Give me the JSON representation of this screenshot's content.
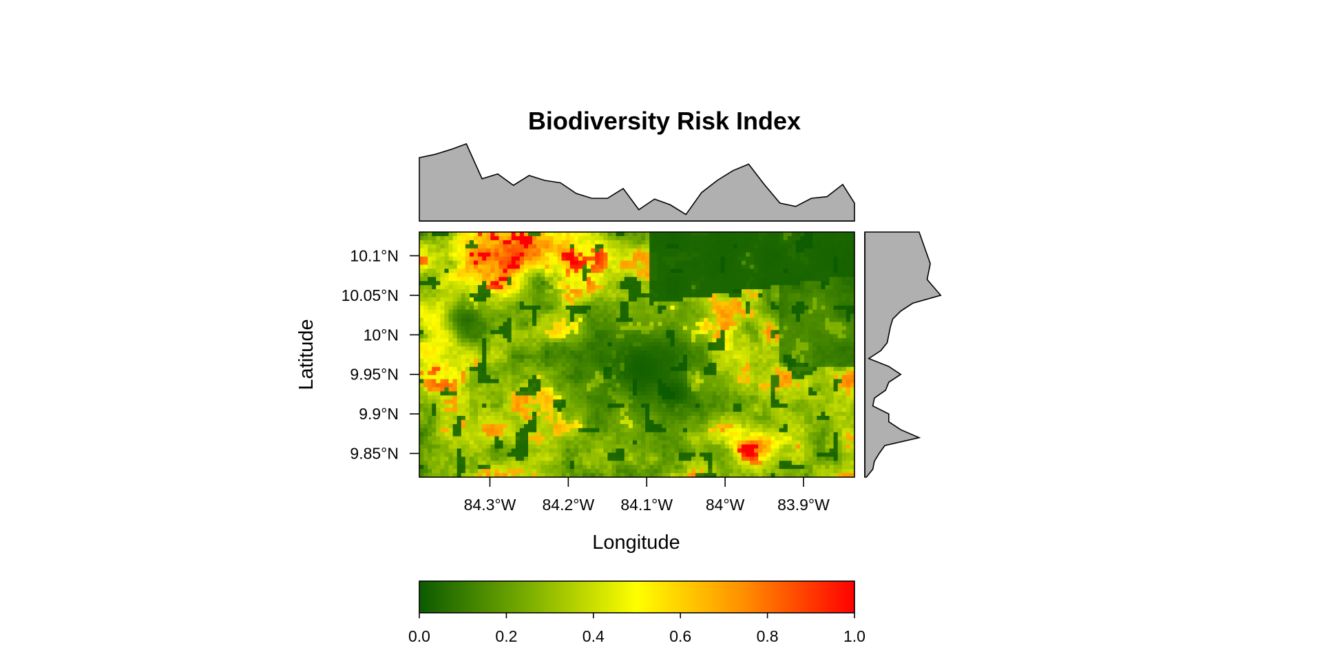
{
  "chart_data": {
    "type": "heatmap",
    "title": "Biodiversity Risk Index",
    "xlabel": "Longitude",
    "ylabel": "Latitude",
    "xlim": [
      -84.39,
      -83.835
    ],
    "ylim": [
      9.82,
      10.13
    ],
    "x_ticks": [
      {
        "value": -84.3,
        "label": "84.3°W"
      },
      {
        "value": -84.2,
        "label": "84.2°W"
      },
      {
        "value": -84.1,
        "label": "84.1°W"
      },
      {
        "value": -84.0,
        "label": "84°W"
      },
      {
        "value": -83.9,
        "label": "83.9°W"
      }
    ],
    "y_ticks": [
      {
        "value": 10.1,
        "label": "10.1°N"
      },
      {
        "value": 10.05,
        "label": "10.05°N"
      },
      {
        "value": 10.0,
        "label": "10°N"
      },
      {
        "value": 9.95,
        "label": "9.95°N"
      },
      {
        "value": 9.9,
        "label": "9.9°N"
      },
      {
        "value": 9.85,
        "label": "9.85°N"
      }
    ],
    "colorbar": {
      "range": [
        0,
        1
      ],
      "ticks": [
        {
          "value": 0.0,
          "label": "0.0"
        },
        {
          "value": 0.2,
          "label": "0.2"
        },
        {
          "value": 0.4,
          "label": "0.4"
        },
        {
          "value": 0.6,
          "label": "0.6"
        },
        {
          "value": 0.8,
          "label": "0.8"
        },
        {
          "value": 1.0,
          "label": "1.0"
        }
      ],
      "stops": [
        {
          "value": 0.0,
          "color": "#0b5a00"
        },
        {
          "value": 0.25,
          "color": "#7aae00"
        },
        {
          "value": 0.5,
          "color": "#ffff00"
        },
        {
          "value": 0.75,
          "color": "#ff8c00"
        },
        {
          "value": 1.0,
          "color": "#ff0000"
        }
      ]
    },
    "top_marginal": {
      "x": [
        -84.39,
        -84.37,
        -84.35,
        -84.33,
        -84.31,
        -84.29,
        -84.27,
        -84.25,
        -84.23,
        -84.21,
        -84.19,
        -84.17,
        -84.15,
        -84.13,
        -84.11,
        -84.09,
        -84.07,
        -84.05,
        -84.03,
        -84.01,
        -83.99,
        -83.97,
        -83.95,
        -83.93,
        -83.91,
        -83.89,
        -83.87,
        -83.85,
        -83.835
      ],
      "values": [
        0.78,
        0.82,
        0.88,
        0.95,
        0.52,
        0.58,
        0.44,
        0.56,
        0.5,
        0.47,
        0.34,
        0.28,
        0.28,
        0.4,
        0.14,
        0.27,
        0.2,
        0.08,
        0.35,
        0.5,
        0.62,
        0.7,
        0.45,
        0.22,
        0.18,
        0.28,
        0.3,
        0.45,
        0.22
      ]
    },
    "right_marginal": {
      "y": [
        10.13,
        10.11,
        10.09,
        10.07,
        10.05,
        10.04,
        10.03,
        10.02,
        10.01,
        10.0,
        9.99,
        9.98,
        9.97,
        9.96,
        9.95,
        9.94,
        9.93,
        9.92,
        9.91,
        9.9,
        9.89,
        9.88,
        9.87,
        9.86,
        9.85,
        9.84,
        9.83,
        9.82
      ],
      "values": [
        0.68,
        0.75,
        0.82,
        0.78,
        0.95,
        0.6,
        0.45,
        0.35,
        0.32,
        0.3,
        0.28,
        0.2,
        0.05,
        0.3,
        0.45,
        0.3,
        0.26,
        0.12,
        0.1,
        0.3,
        0.3,
        0.45,
        0.68,
        0.25,
        0.18,
        0.12,
        0.1,
        0.02
      ]
    }
  }
}
